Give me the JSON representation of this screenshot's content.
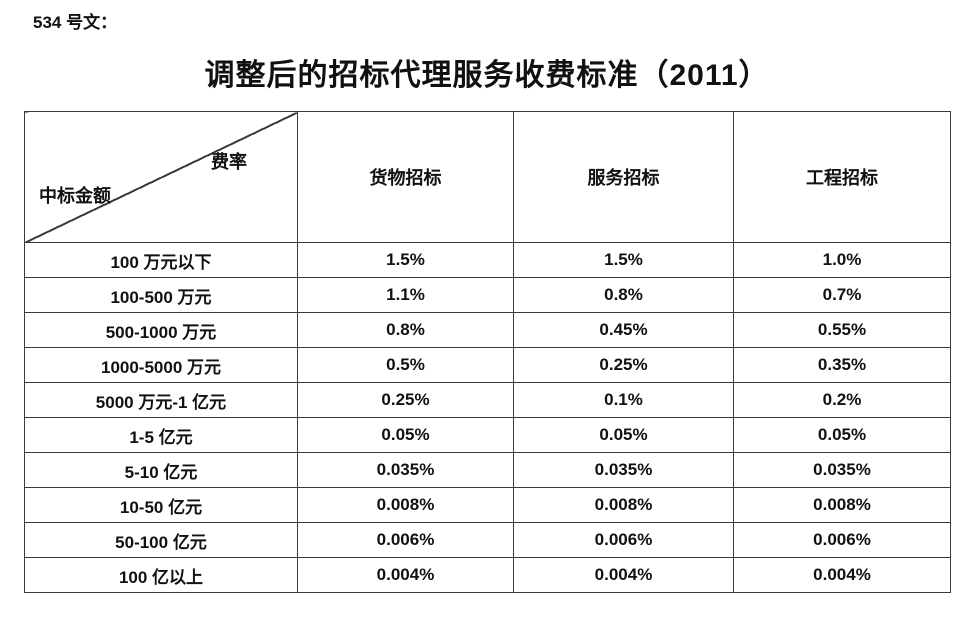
{
  "page": {
    "doc_label": "534 号文：",
    "title": "调整后的招标代理服务收费标准（2011）"
  },
  "table": {
    "corner": {
      "top_right": "费率",
      "bottom_left": "中标金额"
    },
    "columns": [
      "货物招标",
      "服务招标",
      "工程招标"
    ],
    "rows": [
      {
        "label": "100 万元以下",
        "values": [
          "1.5%",
          "1.5%",
          "1.0%"
        ]
      },
      {
        "label": "100-500 万元",
        "values": [
          "1.1%",
          "0.8%",
          "0.7%"
        ]
      },
      {
        "label": "500-1000 万元",
        "values": [
          "0.8%",
          "0.45%",
          "0.55%"
        ]
      },
      {
        "label": "1000-5000 万元",
        "values": [
          "0.5%",
          "0.25%",
          "0.35%"
        ]
      },
      {
        "label": "5000 万元-1 亿元",
        "values": [
          "0.25%",
          "0.1%",
          "0.2%"
        ]
      },
      {
        "label": "1-5 亿元",
        "values": [
          "0.05%",
          "0.05%",
          "0.05%"
        ]
      },
      {
        "label": "5-10 亿元",
        "values": [
          "0.035%",
          "0.035%",
          "0.035%"
        ]
      },
      {
        "label": "10-50 亿元",
        "values": [
          "0.008%",
          "0.008%",
          "0.008%"
        ]
      },
      {
        "label": "50-100 亿元",
        "values": [
          "0.006%",
          "0.006%",
          "0.006%"
        ]
      },
      {
        "label": "100 亿以上",
        "values": [
          "0.004%",
          "0.004%",
          "0.004%"
        ]
      }
    ]
  },
  "colors": {
    "background": "#ffffff",
    "text": "#111111",
    "border": "#3a3a3a"
  }
}
